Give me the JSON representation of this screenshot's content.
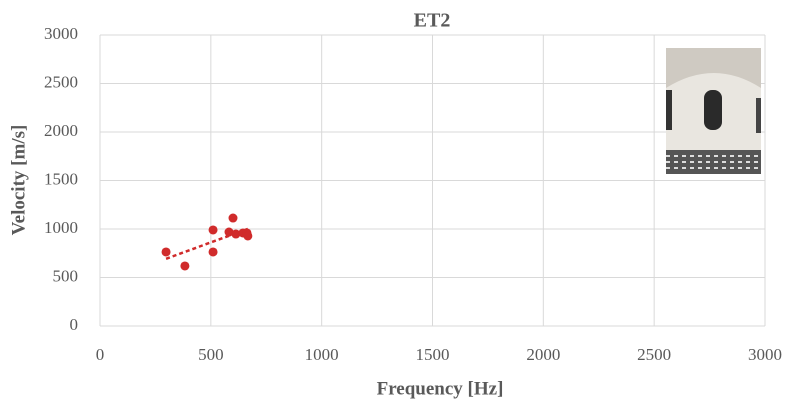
{
  "chart_data": {
    "type": "scatter",
    "title": "ET2",
    "x_label": "Frequency [Hz]",
    "y_label": "Velocity [m/s]",
    "series": [
      {
        "color": "#d02b2b",
        "x": [
          298,
          383,
          510,
          510,
          582,
          600,
          613,
          645,
          663,
          667
        ],
        "values": [
          763,
          619,
          990,
          763,
          969,
          1113,
          948,
          959,
          959,
          928
        ]
      }
    ],
    "xlim": [
      0,
      3000
    ],
    "xticks": [
      0,
      500,
      1000,
      1500,
      2000,
      2500,
      3000
    ],
    "ylim": [
      0,
      3000
    ],
    "yticks": [
      0,
      500,
      1000,
      1500,
      2000,
      2500,
      3000
    ],
    "grid": true,
    "trendline": true
  }
}
